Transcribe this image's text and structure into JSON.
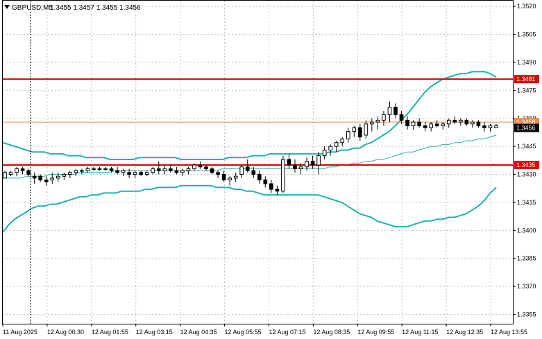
{
  "header": {
    "symbol": "GBPUSD,M5",
    "ohlc": "1.3455 1.3457 1.3455 1.3456",
    "menu_icon": "triangle-down-icon"
  },
  "chart_data": {
    "type": "candlestick",
    "symbol": "GBPUSD",
    "timeframe": "M5",
    "ylim": [
      1.335,
      1.3523
    ],
    "y_ticks": [
      "1.3520",
      "1.3505",
      "1.3490",
      "1.3475",
      "1.3460",
      "1.3445",
      "1.3430",
      "1.3415",
      "1.3400",
      "1.3385",
      "1.3370",
      "1.3355"
    ],
    "x_ticks": [
      "11 Aug 2025",
      "12 Aug 00:30",
      "12 Aug 01:55",
      "12 Aug 03:15",
      "12 Aug 04:35",
      "12 Aug 05:55",
      "12 Aug 07:15",
      "12 Aug 08:35",
      "12 Aug 09:55",
      "12 Aug 11:15",
      "12 Aug 12:35",
      "12 Aug 13:55"
    ],
    "current_price": "1.3456",
    "horizontal_levels": [
      {
        "value": 1.3481,
        "label": "1.3481",
        "color": "#dd0000"
      },
      {
        "value": 1.3435,
        "label": "1.3435",
        "color": "#dd0000"
      },
      {
        "value": 1.3458,
        "label": "1.3458",
        "color": "#f08a4b"
      }
    ],
    "colors": {
      "bollinger": "#20b2aa",
      "candle": "#000000",
      "grid": "#c0c0c0",
      "level": "#dd0000",
      "bid_line": "#f08a4b",
      "axis_text": "#000000"
    },
    "vertical_marker_tick": "11 Aug 2025",
    "bollinger": {
      "upper": [
        1.3447,
        1.3446,
        1.3445,
        1.3444,
        1.3443,
        1.3442,
        1.3442,
        1.3442,
        1.3441,
        1.3441,
        1.3441,
        1.344,
        1.344,
        1.344,
        1.3439,
        1.3439,
        1.3439,
        1.3439,
        1.3438,
        1.3438,
        1.3438,
        1.3438,
        1.3438,
        1.3439,
        1.3439,
        1.3439,
        1.3439,
        1.3439,
        1.3439,
        1.3439,
        1.3438,
        1.3438,
        1.3438,
        1.3438,
        1.3438,
        1.3438,
        1.3438,
        1.3438,
        1.3439,
        1.3439,
        1.3439,
        1.3439,
        1.344,
        1.344,
        1.344,
        1.3441,
        1.3441,
        1.3441,
        1.3441,
        1.3441,
        1.3441,
        1.3441,
        1.3441,
        1.3441,
        1.3441,
        1.3442,
        1.3442,
        1.3443,
        1.3443,
        1.3444,
        1.3444,
        1.3446,
        1.3447,
        1.3449,
        1.3451,
        1.3453,
        1.3456,
        1.3459,
        1.3462,
        1.3466,
        1.347,
        1.3474,
        1.3477,
        1.3479,
        1.3481,
        1.3482,
        1.3483,
        1.3484,
        1.3484,
        1.3485,
        1.3485,
        1.3485,
        1.3484,
        1.3482
      ],
      "middle": [
        1.3428,
        1.3428,
        1.3428,
        1.3428,
        1.3429,
        1.3429,
        1.3429,
        1.3429,
        1.343,
        1.343,
        1.343,
        1.343,
        1.343,
        1.3431,
        1.3431,
        1.3431,
        1.3431,
        1.3431,
        1.3431,
        1.3432,
        1.3432,
        1.3432,
        1.3432,
        1.3432,
        1.3432,
        1.3432,
        1.3432,
        1.3432,
        1.3432,
        1.3432,
        1.3432,
        1.3432,
        1.3432,
        1.3432,
        1.3432,
        1.3432,
        1.3432,
        1.3433,
        1.3433,
        1.3433,
        1.3433,
        1.3433,
        1.3433,
        1.3433,
        1.3433,
        1.3433,
        1.3433,
        1.3433,
        1.3433,
        1.3433,
        1.3433,
        1.3433,
        1.3433,
        1.3433,
        1.3433,
        1.3434,
        1.3434,
        1.3435,
        1.3435,
        1.3436,
        1.3436,
        1.3437,
        1.3437,
        1.3438,
        1.3438,
        1.3439,
        1.344,
        1.3441,
        1.3442,
        1.3442,
        1.3443,
        1.3444,
        1.3445,
        1.3445,
        1.3446,
        1.3446,
        1.3447,
        1.3447,
        1.3448,
        1.3448,
        1.3449,
        1.3449,
        1.345,
        1.3451
      ],
      "lower": [
        1.3399,
        1.3403,
        1.3406,
        1.3408,
        1.341,
        1.3412,
        1.3413,
        1.3413,
        1.3414,
        1.3414,
        1.3415,
        1.3416,
        1.3417,
        1.3418,
        1.3418,
        1.3419,
        1.3419,
        1.342,
        1.342,
        1.342,
        1.3421,
        1.3421,
        1.3421,
        1.3421,
        1.3422,
        1.3422,
        1.3423,
        1.3423,
        1.3423,
        1.3423,
        1.3424,
        1.3424,
        1.3424,
        1.3424,
        1.3424,
        1.3424,
        1.3423,
        1.3423,
        1.3423,
        1.3422,
        1.3422,
        1.3421,
        1.3421,
        1.342,
        1.3419,
        1.3419,
        1.3419,
        1.3419,
        1.3419,
        1.3419,
        1.3419,
        1.3419,
        1.3419,
        1.3419,
        1.3418,
        1.3417,
        1.3416,
        1.3415,
        1.3413,
        1.3411,
        1.3409,
        1.3408,
        1.3407,
        1.3405,
        1.3404,
        1.3403,
        1.3402,
        1.3402,
        1.3402,
        1.3403,
        1.3404,
        1.3405,
        1.3405,
        1.3406,
        1.3406,
        1.3407,
        1.3407,
        1.3408,
        1.3409,
        1.3411,
        1.3413,
        1.3416,
        1.342,
        1.3423
      ]
    },
    "candles": [
      [
        1.3428,
        1.3432,
        1.3428,
        1.3431
      ],
      [
        1.343,
        1.3432,
        1.3429,
        1.3431
      ],
      [
        1.3431,
        1.3434,
        1.3429,
        1.3433
      ],
      [
        1.3433,
        1.3434,
        1.343,
        1.3432
      ],
      [
        1.3432,
        1.3433,
        1.3429,
        1.343
      ],
      [
        1.3429,
        1.3431,
        1.3425,
        1.3428
      ],
      [
        1.3429,
        1.343,
        1.3426,
        1.3427
      ],
      [
        1.3427,
        1.3429,
        1.3424,
        1.3426
      ],
      [
        1.3427,
        1.3431,
        1.3425,
        1.3428
      ],
      [
        1.3428,
        1.3431,
        1.3426,
        1.3429
      ],
      [
        1.3429,
        1.3431,
        1.3427,
        1.343
      ],
      [
        1.343,
        1.3432,
        1.3428,
        1.3431
      ],
      [
        1.3431,
        1.3433,
        1.3429,
        1.3432
      ],
      [
        1.3432,
        1.3433,
        1.343,
        1.3432
      ],
      [
        1.3432,
        1.3434,
        1.3431,
        1.3433
      ],
      [
        1.3433,
        1.3434,
        1.3432,
        1.3433
      ],
      [
        1.3433,
        1.3434,
        1.3432,
        1.3433
      ],
      [
        1.3433,
        1.3434,
        1.3432,
        1.3433
      ],
      [
        1.3433,
        1.3434,
        1.3431,
        1.3432
      ],
      [
        1.3432,
        1.3434,
        1.343,
        1.3431
      ],
      [
        1.3431,
        1.3433,
        1.3429,
        1.3432
      ],
      [
        1.3431,
        1.3433,
        1.3428,
        1.343
      ],
      [
        1.343,
        1.3432,
        1.3428,
        1.3431
      ],
      [
        1.3431,
        1.3432,
        1.3429,
        1.343
      ],
      [
        1.343,
        1.3432,
        1.3429,
        1.3431
      ],
      [
        1.3431,
        1.3434,
        1.343,
        1.3433
      ],
      [
        1.3433,
        1.3437,
        1.343,
        1.3432
      ],
      [
        1.3432,
        1.3435,
        1.343,
        1.3433
      ],
      [
        1.3433,
        1.3435,
        1.3431,
        1.3432
      ],
      [
        1.3432,
        1.3434,
        1.343,
        1.3431
      ],
      [
        1.3431,
        1.3433,
        1.3429,
        1.3432
      ],
      [
        1.3432,
        1.3434,
        1.343,
        1.3433
      ],
      [
        1.3433,
        1.3436,
        1.3432,
        1.3435
      ],
      [
        1.3435,
        1.3437,
        1.3433,
        1.3434
      ],
      [
        1.3434,
        1.3435,
        1.3432,
        1.3433
      ],
      [
        1.3433,
        1.3434,
        1.343,
        1.3431
      ],
      [
        1.3431,
        1.3432,
        1.3428,
        1.343
      ],
      [
        1.343,
        1.3432,
        1.3426,
        1.3427
      ],
      [
        1.3427,
        1.3429,
        1.3424,
        1.3428
      ],
      [
        1.3428,
        1.3431,
        1.3426,
        1.3429
      ],
      [
        1.343,
        1.3435,
        1.3428,
        1.3434
      ],
      [
        1.3434,
        1.3438,
        1.3431,
        1.3432
      ],
      [
        1.3432,
        1.3434,
        1.3428,
        1.343
      ],
      [
        1.343,
        1.3432,
        1.3425,
        1.3427
      ],
      [
        1.3427,
        1.3429,
        1.3423,
        1.3425
      ],
      [
        1.3425,
        1.3427,
        1.342,
        1.3422
      ],
      [
        1.3422,
        1.3424,
        1.3419,
        1.3421
      ],
      [
        1.3421,
        1.344,
        1.342,
        1.3438
      ],
      [
        1.3438,
        1.3441,
        1.3433,
        1.3435
      ],
      [
        1.3435,
        1.3438,
        1.3431,
        1.3433
      ],
      [
        1.3433,
        1.3436,
        1.343,
        1.3434
      ],
      [
        1.3434,
        1.3439,
        1.3432,
        1.3437
      ],
      [
        1.3437,
        1.344,
        1.3433,
        1.3435
      ],
      [
        1.3435,
        1.3442,
        1.343,
        1.344
      ],
      [
        1.344,
        1.3445,
        1.3438,
        1.3443
      ],
      [
        1.3443,
        1.3446,
        1.344,
        1.3445
      ],
      [
        1.3445,
        1.3448,
        1.3442,
        1.3447
      ],
      [
        1.3447,
        1.345,
        1.3445,
        1.3449
      ],
      [
        1.3449,
        1.3455,
        1.3447,
        1.3453
      ],
      [
        1.3453,
        1.3456,
        1.345,
        1.3455
      ],
      [
        1.3455,
        1.3457,
        1.3448,
        1.345
      ],
      [
        1.3451,
        1.3459,
        1.3449,
        1.3457
      ],
      [
        1.3457,
        1.346,
        1.3453,
        1.3458
      ],
      [
        1.3458,
        1.3461,
        1.3454,
        1.3459
      ],
      [
        1.3459,
        1.3464,
        1.3456,
        1.3462
      ],
      [
        1.3462,
        1.3469,
        1.3458,
        1.3466
      ],
      [
        1.3466,
        1.3468,
        1.346,
        1.3462
      ],
      [
        1.3462,
        1.3464,
        1.3457,
        1.3459
      ],
      [
        1.3459,
        1.3461,
        1.3454,
        1.3456
      ],
      [
        1.3456,
        1.3459,
        1.3454,
        1.3458
      ],
      [
        1.3458,
        1.346,
        1.3455,
        1.3456
      ],
      [
        1.3456,
        1.3458,
        1.3453,
        1.3455
      ],
      [
        1.3455,
        1.3458,
        1.3453,
        1.3457
      ],
      [
        1.3457,
        1.3459,
        1.3455,
        1.3456
      ],
      [
        1.3456,
        1.3458,
        1.3454,
        1.3457
      ],
      [
        1.3457,
        1.346,
        1.3455,
        1.3459
      ],
      [
        1.3459,
        1.3461,
        1.3457,
        1.3458
      ],
      [
        1.3458,
        1.346,
        1.3456,
        1.3459
      ],
      [
        1.3459,
        1.346,
        1.3456,
        1.3457
      ],
      [
        1.3457,
        1.3459,
        1.3455,
        1.3458
      ],
      [
        1.3458,
        1.3459,
        1.3455,
        1.3456
      ],
      [
        1.3456,
        1.3458,
        1.3453,
        1.3455
      ],
      [
        1.3455,
        1.3457,
        1.3453,
        1.3456
      ],
      [
        1.3455,
        1.3457,
        1.3455,
        1.3456
      ]
    ]
  }
}
